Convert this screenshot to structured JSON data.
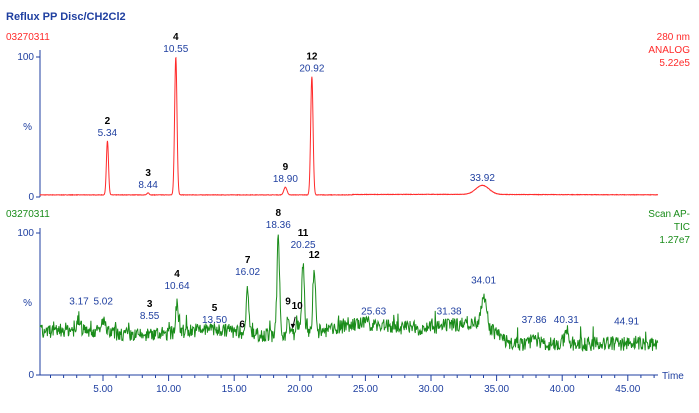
{
  "title": "Reflux PP Disc/CH2Cl2",
  "colors": {
    "title": "#1f3fa0",
    "axis": "#1f3fa0",
    "top_trace": "#ff2a2a",
    "bottom_trace": "#1a8c1a",
    "peak_number": "#000000",
    "retention_time": "#1f3fa0"
  },
  "chart_data": [
    {
      "type": "line",
      "sample_id": "03270311",
      "detector": [
        "280 nm",
        "ANALOG",
        "5.22e5"
      ],
      "ylabel": "%",
      "y_ticks": [
        "100",
        "0"
      ],
      "ylim": [
        0,
        100
      ],
      "xlim": [
        0.2,
        47.3
      ],
      "baseline": 1.5,
      "trace_color": "#ff2a2a",
      "peaks": [
        {
          "number": "2",
          "rt": "5.34",
          "x": 5.34,
          "height": 40,
          "width": 0.08
        },
        {
          "number": "3",
          "rt": "8.44",
          "x": 8.44,
          "height": 3,
          "width": 0.08
        },
        {
          "number": "4",
          "rt": "10.55",
          "x": 10.55,
          "height": 100,
          "width": 0.09
        },
        {
          "number": "9",
          "rt": "18.90",
          "x": 18.9,
          "height": 7,
          "width": 0.12
        },
        {
          "number": "12",
          "rt": "20.92",
          "x": 20.92,
          "height": 86,
          "width": 0.09
        },
        {
          "number": "",
          "rt": "33.92",
          "x": 33.92,
          "height": 8,
          "width": 0.5
        }
      ]
    },
    {
      "type": "line",
      "sample_id": "03270311",
      "detector": [
        "Scan AP-",
        "TIC",
        "1.27e7"
      ],
      "ylabel": "%",
      "y_ticks": [
        "100",
        "%",
        "0"
      ],
      "ylim": [
        0,
        100
      ],
      "xlim": [
        0.2,
        47.3
      ],
      "xlabel": "Time",
      "x_ticks": [
        "5.00",
        "10.00",
        "15.00",
        "20.00",
        "25.00",
        "30.00",
        "35.00",
        "40.00",
        "45.00"
      ],
      "x_tick_values": [
        5,
        10,
        15,
        20,
        25,
        30,
        35,
        40,
        45
      ],
      "trace_color": "#1a8c1a",
      "peaks": [
        {
          "number": "",
          "rt": "3.17",
          "x": 3.17,
          "height": 46
        },
        {
          "number": "",
          "rt": "5.02",
          "x": 5.02,
          "height": 46
        },
        {
          "number": "3",
          "rt": "8.55",
          "x": 8.55,
          "height": 36
        },
        {
          "number": "4",
          "rt": "10.64",
          "x": 10.64,
          "height": 57
        },
        {
          "number": "5",
          "rt": "13.50",
          "x": 13.5,
          "height": 33
        },
        {
          "number": "6",
          "rt": "",
          "x": 15.6,
          "height": 30
        },
        {
          "number": "7",
          "rt": "16.02",
          "x": 16.02,
          "height": 67
        },
        {
          "number": "8",
          "rt": "18.36",
          "x": 18.36,
          "height": 100
        },
        {
          "number": "9",
          "rt": "",
          "x": 19.1,
          "height": 46
        },
        {
          "number": "10",
          "rt": "",
          "x": 19.8,
          "height": 43
        },
        {
          "number": "11",
          "rt": "20.25",
          "x": 20.25,
          "height": 86
        },
        {
          "number": "12",
          "rt": "",
          "x": 21.1,
          "height": 79
        },
        {
          "number": "",
          "rt": "25.63",
          "x": 25.63,
          "height": 39
        },
        {
          "number": "",
          "rt": "31.38",
          "x": 31.38,
          "height": 39
        },
        {
          "number": "",
          "rt": "34.01",
          "x": 34.01,
          "height": 61
        },
        {
          "number": "",
          "rt": "37.86",
          "x": 37.86,
          "height": 33
        },
        {
          "number": "",
          "rt": "40.31",
          "x": 40.31,
          "height": 33
        },
        {
          "number": "",
          "rt": "44.91",
          "x": 44.91,
          "height": 32
        }
      ]
    }
  ]
}
